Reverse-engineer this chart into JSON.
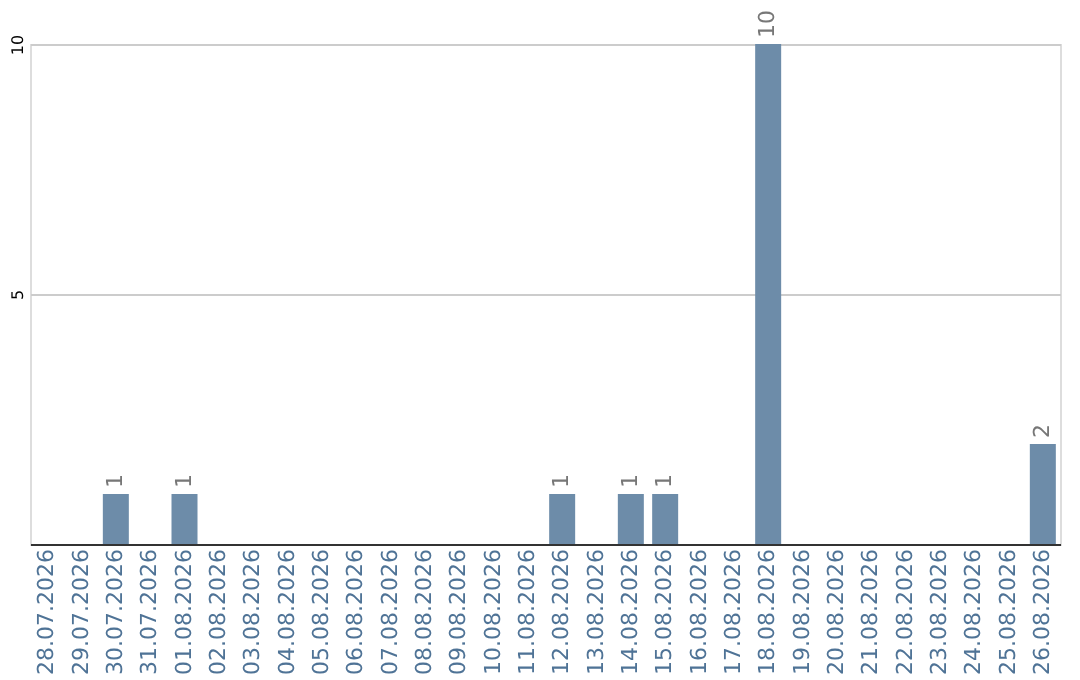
{
  "chart_data": {
    "type": "bar",
    "categories": [
      "28.07.2026",
      "29.07.2026",
      "30.07.2026",
      "31.07.2026",
      "01.08.2026",
      "02.08.2026",
      "03.08.2026",
      "04.08.2026",
      "05.08.2026",
      "06.08.2026",
      "07.08.2026",
      "08.08.2026",
      "09.08.2026",
      "10.08.2026",
      "11.08.2026",
      "12.08.2026",
      "13.08.2026",
      "14.08.2026",
      "15.08.2026",
      "16.08.2026",
      "17.08.2026",
      "18.08.2026",
      "19.08.2026",
      "20.08.2026",
      "21.08.2026",
      "22.08.2026",
      "23.08.2026",
      "24.08.2026",
      "25.08.2026",
      "26.08.2026"
    ],
    "values": [
      0,
      0,
      1,
      0,
      1,
      0,
      0,
      0,
      0,
      0,
      0,
      0,
      0,
      0,
      0,
      1,
      0,
      1,
      1,
      0,
      0,
      10,
      0,
      0,
      0,
      0,
      0,
      0,
      0,
      2
    ],
    "value_labels": [
      null,
      null,
      "1",
      null,
      "1",
      null,
      null,
      null,
      null,
      null,
      null,
      null,
      null,
      null,
      null,
      "1",
      null,
      "1",
      "1",
      null,
      null,
      "10",
      null,
      null,
      null,
      null,
      null,
      null,
      null,
      "2"
    ],
    "color": "#6d8ca9",
    "ylim": [
      0,
      10
    ],
    "yticks": [
      5,
      10
    ],
    "grid": "y"
  }
}
